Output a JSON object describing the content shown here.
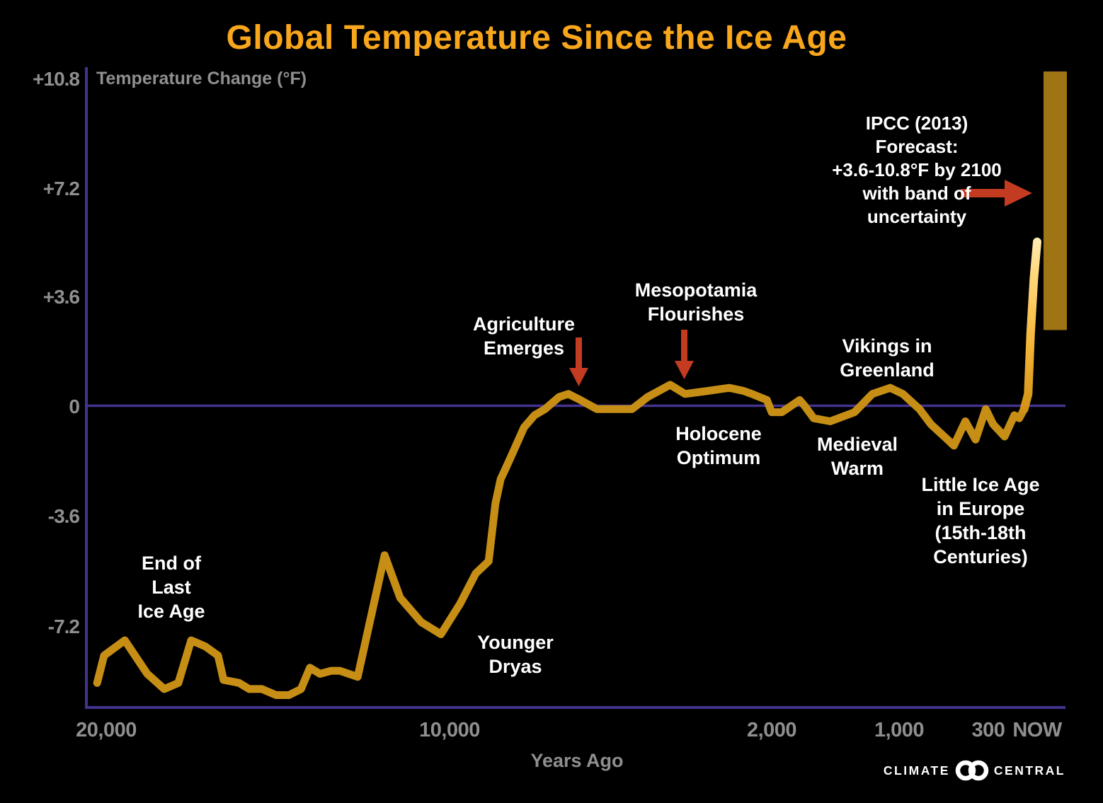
{
  "title": "Global Temperature Since the Ice Age",
  "branding": {
    "left": "CLIMATE",
    "right": "CENTRAL"
  },
  "colors": {
    "background": "#000000",
    "title": "#F8A61B",
    "axis": "#43338F",
    "tick_text": "#8F8F8F",
    "annotation_text": "#FFFFFF",
    "temperature_line": "#C68E15",
    "spike_gradient_bottom": "#D19114",
    "spike_gradient_top": "#FFECB8",
    "forecast_band": "#9E7414",
    "arrow_red": "#C33B20"
  },
  "chart_data": {
    "type": "line",
    "title": "Global Temperature Since the Ice Age",
    "xlabel": "Years Ago",
    "ylabel": "Temperature Change (°F)",
    "grid": false,
    "legend": false,
    "x_axis": {
      "scale": "piecewise, expanding toward present",
      "ticks": [
        {
          "label": "20,000",
          "years": 20000
        },
        {
          "label": "10,000",
          "years": 10000
        },
        {
          "label": "2,000",
          "years": 2000
        },
        {
          "label": "1,000",
          "years": 1000
        },
        {
          "label": "300",
          "years": 300
        },
        {
          "label": "NOW",
          "years": 0
        }
      ]
    },
    "y_axis": {
      "ticks": [
        "+10.8",
        "+7.2",
        "+3.6",
        "0",
        "-3.6",
        "-7.2"
      ],
      "values": [
        10.8,
        7.2,
        3.6,
        0,
        -3.6,
        -7.2
      ],
      "ylim": [
        -10.0,
        11.2
      ],
      "zero_baseline": true
    },
    "series": [
      {
        "name": "Reconstructed global temperature change (°F)",
        "points": [
          [
            20200,
            -9.1
          ],
          [
            20000,
            -8.2
          ],
          [
            19400,
            -7.7
          ],
          [
            18750,
            -8.8
          ],
          [
            18260,
            -9.3
          ],
          [
            17850,
            -9.1
          ],
          [
            17480,
            -7.7
          ],
          [
            17070,
            -7.9
          ],
          [
            16700,
            -8.2
          ],
          [
            16540,
            -9.0
          ],
          [
            16090,
            -9.1
          ],
          [
            15800,
            -9.3
          ],
          [
            15430,
            -9.3
          ],
          [
            15020,
            -9.5
          ],
          [
            14650,
            -9.5
          ],
          [
            14300,
            -9.3
          ],
          [
            14040,
            -8.6
          ],
          [
            13750,
            -8.8
          ],
          [
            13420,
            -8.7
          ],
          [
            13180,
            -8.7
          ],
          [
            12660,
            -8.9
          ],
          [
            11880,
            -4.9
          ],
          [
            11430,
            -6.3
          ],
          [
            10820,
            -7.1
          ],
          [
            10250,
            -7.5
          ],
          [
            9740,
            -6.5
          ],
          [
            9350,
            -5.5
          ],
          [
            9030,
            -5.1
          ],
          [
            8860,
            -3.2
          ],
          [
            8730,
            -2.4
          ],
          [
            8590,
            -2.0
          ],
          [
            8420,
            -1.5
          ],
          [
            8150,
            -0.7
          ],
          [
            7890,
            -0.3
          ],
          [
            7630,
            -0.1
          ],
          [
            7280,
            0.3
          ],
          [
            7050,
            0.4
          ],
          [
            6750,
            0.2
          ],
          [
            6340,
            -0.1
          ],
          [
            5960,
            -0.1
          ],
          [
            5470,
            -0.1
          ],
          [
            5080,
            0.3
          ],
          [
            4520,
            0.7
          ],
          [
            4150,
            0.4
          ],
          [
            3580,
            0.5
          ],
          [
            3050,
            0.6
          ],
          [
            2700,
            0.5
          ],
          [
            2490,
            0.4
          ],
          [
            2120,
            0.2
          ],
          [
            2000,
            -0.2
          ],
          [
            1920,
            -0.2
          ],
          [
            1780,
            0.2
          ],
          [
            1740,
            0.0
          ],
          [
            1670,
            -0.4
          ],
          [
            1540,
            -0.5
          ],
          [
            1350,
            -0.2
          ],
          [
            1210,
            0.4
          ],
          [
            1070,
            0.6
          ],
          [
            970,
            0.4
          ],
          [
            840,
            -0.1
          ],
          [
            750,
            -0.6
          ],
          [
            620,
            -1.1
          ],
          [
            570,
            -1.3
          ],
          [
            480,
            -0.5
          ],
          [
            400,
            -1.1
          ],
          [
            320,
            -0.1
          ],
          [
            270,
            -0.6
          ],
          [
            200,
            -1.0
          ],
          [
            140,
            -0.3
          ],
          [
            110,
            -0.4
          ],
          [
            80,
            -0.1
          ]
        ]
      },
      {
        "name": "Recent rapid warming spike",
        "points": [
          [
            80,
            -0.1
          ],
          [
            55,
            0.4
          ],
          [
            40,
            2.4
          ],
          [
            20,
            4.2
          ],
          [
            0,
            5.4
          ]
        ]
      }
    ],
    "forecast_band": {
      "plotted_temp_range_f": [
        2.5,
        11.0
      ],
      "stated_range": "+3.6-10.8°F by 2100"
    },
    "annotations": [
      {
        "text": "End of\nLast\nIce Age",
        "approx_years_ago": 18000
      },
      {
        "text": "Younger\nDryas",
        "approx_years_ago": 10300
      },
      {
        "text": "Agriculture\nEmerges",
        "approx_years_ago": 6800,
        "arrow": "down"
      },
      {
        "text": "Mesopotamia\nFlourishes",
        "approx_years_ago": 4200,
        "arrow": "down"
      },
      {
        "text": "Holocene\nOptimum",
        "approx_years_ago": 3500
      },
      {
        "text": "Medieval\nWarm",
        "approx_years_ago": 1100
      },
      {
        "text": "Vikings in\nGreenland",
        "approx_years_ago": 1000
      },
      {
        "text": "Little Ice Age\nin Europe\n(15th-18th\nCenturies)",
        "approx_years_ago": 400
      },
      {
        "text": "IPCC (2013) Forecast:\n+3.6-10.8°F by 2100\nwith band of uncertainty",
        "approx_years_ago": 0,
        "arrow": "right"
      }
    ]
  }
}
